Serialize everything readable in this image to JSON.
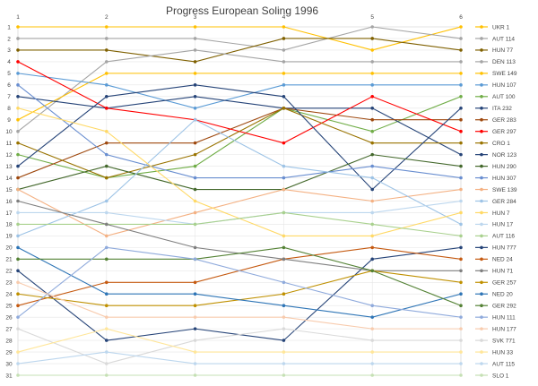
{
  "chart_data": {
    "type": "line",
    "title": "Progress European Soling 1996",
    "x": [
      1,
      2,
      3,
      4,
      5,
      6
    ],
    "ylim": [
      1,
      31
    ],
    "y_inverted": true,
    "y_ticks": [
      1,
      2,
      3,
      4,
      5,
      6,
      7,
      8,
      9,
      10,
      11,
      12,
      13,
      14,
      15,
      16,
      17,
      18,
      19,
      20,
      21,
      22,
      23,
      24,
      25,
      26,
      27,
      28,
      29,
      30,
      31
    ],
    "grid": true,
    "legend_position": "right",
    "series": [
      {
        "name": "UKR 1",
        "color": "#ffc000",
        "values": [
          1,
          1,
          1,
          1,
          3,
          1
        ]
      },
      {
        "name": "AUT 114",
        "color": "#a5a5a5",
        "values": [
          2,
          2,
          2,
          3,
          1,
          2
        ]
      },
      {
        "name": "HUN 77",
        "color": "#7f6000",
        "values": [
          3,
          3,
          4,
          2,
          2,
          3
        ]
      },
      {
        "name": "DEN 113",
        "color": "#a5a5a5",
        "values": [
          10,
          4,
          3,
          4,
          4,
          4
        ]
      },
      {
        "name": "SWE 149",
        "color": "#ffc000",
        "values": [
          9,
          5,
          5,
          5,
          5,
          5
        ]
      },
      {
        "name": "HUN 107",
        "color": "#5b9bd5",
        "values": [
          5,
          6,
          8,
          6,
          6,
          6
        ]
      },
      {
        "name": "AUT 100",
        "color": "#70ad47",
        "values": [
          12,
          14,
          13,
          8,
          10,
          7
        ]
      },
      {
        "name": "ITA 232",
        "color": "#264478",
        "values": [
          7,
          8,
          7,
          8,
          8,
          12
        ]
      },
      {
        "name": "GER 283",
        "color": "#9e480e",
        "values": [
          14,
          11,
          11,
          8,
          9,
          9
        ]
      },
      {
        "name": "GER 297",
        "color": "#ff0000",
        "values": [
          4,
          8,
          9,
          11,
          7,
          10
        ]
      },
      {
        "name": "CRO 1",
        "color": "#997300",
        "values": [
          11,
          14,
          12,
          8,
          11,
          11
        ]
      },
      {
        "name": "NOR 123",
        "color": "#264478",
        "values": [
          13,
          7,
          6,
          7,
          15,
          8
        ]
      },
      {
        "name": "HUN 290",
        "color": "#43682b",
        "values": [
          15,
          13,
          15,
          15,
          12,
          13
        ]
      },
      {
        "name": "HUN 307",
        "color": "#698ed0",
        "values": [
          6,
          12,
          14,
          14,
          13,
          14
        ]
      },
      {
        "name": "SWE 139",
        "color": "#f4b183",
        "values": [
          15,
          19,
          17,
          15,
          16,
          15
        ]
      },
      {
        "name": "GER 284",
        "color": "#9dc3e6",
        "values": [
          19,
          16,
          9,
          13,
          14,
          18
        ]
      },
      {
        "name": "HUN 7",
        "color": "#ffd966",
        "values": [
          8,
          10,
          16,
          19,
          19,
          17
        ]
      },
      {
        "name": "HUN 17",
        "color": "#bdd7ee",
        "values": [
          17,
          17,
          18,
          17,
          17,
          16
        ]
      },
      {
        "name": "AUT 116",
        "color": "#a9d18e",
        "values": [
          18,
          18,
          18,
          17,
          18,
          19
        ]
      },
      {
        "name": "HUN 777",
        "color": "#264478",
        "values": [
          22,
          28,
          27,
          28,
          21,
          20
        ]
      },
      {
        "name": "NED 24",
        "color": "#c55a11",
        "values": [
          25,
          23,
          23,
          21,
          20,
          21
        ]
      },
      {
        "name": "HUN 71",
        "color": "#7f7f7f",
        "values": [
          16,
          18,
          20,
          21,
          22,
          22
        ]
      },
      {
        "name": "GER 257",
        "color": "#bf9000",
        "values": [
          24,
          25,
          25,
          24,
          22,
          23
        ]
      },
      {
        "name": "NED 20",
        "color": "#2e75b6",
        "values": [
          20,
          24,
          24,
          25,
          26,
          24
        ]
      },
      {
        "name": "GER 292",
        "color": "#548235",
        "values": [
          21,
          21,
          21,
          20,
          22,
          25
        ]
      },
      {
        "name": "HUN 111",
        "color": "#8faadc",
        "values": [
          26,
          20,
          21,
          23,
          25,
          26
        ]
      },
      {
        "name": "HUN 177",
        "color": "#f8cbad",
        "values": [
          23,
          26,
          26,
          26,
          27,
          27
        ]
      },
      {
        "name": "SVK 771",
        "color": "#d9d9d9",
        "values": [
          27,
          30,
          28,
          27,
          28,
          28
        ]
      },
      {
        "name": "HUN 33",
        "color": "#ffe699",
        "values": [
          29,
          27,
          29,
          29,
          29,
          29
        ]
      },
      {
        "name": "AUT 115",
        "color": "#bdd7ee",
        "values": [
          30,
          29,
          30,
          30,
          30,
          30
        ]
      },
      {
        "name": "SLO 1",
        "color": "#c5e0b4",
        "values": [
          31,
          31,
          31,
          31,
          31,
          31
        ]
      }
    ]
  }
}
